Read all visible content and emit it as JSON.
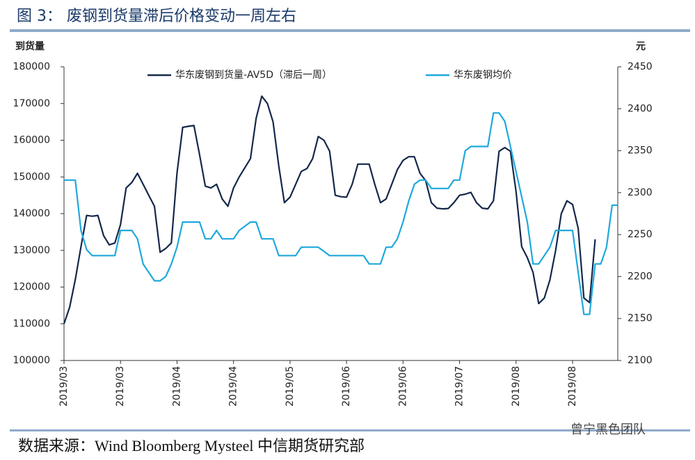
{
  "chart_data": {
    "type": "line",
    "title": "图 3：      废钢到货量滞后价格变动一周左右",
    "y_axis_label": "到货量",
    "y2_axis_label": "元",
    "source": "数据来源：Wind Bloomberg Mysteel 中信期货研究部",
    "watermark": "曾宁黑色团队",
    "categories": [
      "2019/03",
      null,
      null,
      null,
      null,
      null,
      null,
      null,
      null,
      null,
      "2019/03",
      null,
      null,
      null,
      null,
      null,
      null,
      null,
      null,
      null,
      "2019/04",
      null,
      null,
      null,
      null,
      null,
      null,
      null,
      null,
      null,
      "2019/04",
      null,
      null,
      null,
      null,
      null,
      null,
      null,
      null,
      null,
      "2019/05",
      null,
      null,
      null,
      null,
      null,
      null,
      null,
      null,
      null,
      "2019/06",
      null,
      null,
      null,
      null,
      null,
      null,
      null,
      null,
      null,
      "2019/06",
      null,
      null,
      null,
      null,
      null,
      null,
      null,
      null,
      null,
      "2019/07",
      null,
      null,
      null,
      null,
      null,
      null,
      null,
      null,
      null,
      "2019/08",
      null,
      null,
      null,
      null,
      null,
      null,
      null,
      null,
      null,
      "2019/08",
      null,
      null,
      null,
      null,
      null,
      null,
      null,
      null
    ],
    "series": [
      {
        "name": "华东废钢到货量-AV5D（滞后一周）",
        "color": "#14284b",
        "axis": "y",
        "values": [
          110000,
          114500,
          122000,
          131000,
          139500,
          139300,
          139500,
          134000,
          131500,
          132000,
          137000,
          147000,
          148500,
          151000,
          148000,
          145000,
          142000,
          129500,
          130500,
          132000,
          151000,
          163500,
          163800,
          164000,
          156000,
          147500,
          147000,
          148000,
          144000,
          142000,
          147000,
          150000,
          152500,
          155000,
          166000,
          172000,
          170000,
          165000,
          153000,
          143000,
          144500,
          148000,
          151500,
          152300,
          155000,
          161000,
          160000,
          157000,
          145000,
          144600,
          144500,
          148000,
          153500,
          153500,
          153500,
          148000,
          143000,
          144000,
          148000,
          152000,
          154500,
          155500,
          155500,
          151000,
          149000,
          143000,
          141500,
          141300,
          141400,
          143000,
          145000,
          145300,
          145800,
          143000,
          141500,
          141300,
          143500,
          157000,
          158000,
          157000,
          146000,
          131000,
          128000,
          124000,
          115500,
          117000,
          122000,
          130000,
          140000,
          143500,
          142500,
          136000,
          117000,
          115800,
          133000,
          null,
          null,
          null,
          null
        ]
      },
      {
        "name": "华东废钢均价",
        "color": "#1fa8dc",
        "axis": "y2",
        "values": [
          2315,
          2315,
          2315,
          2255,
          2232,
          2225,
          2225,
          2225,
          2225,
          2225,
          2255,
          2255,
          2255,
          2245,
          2215,
          2205,
          2195,
          2195,
          2200,
          2215,
          2235,
          2265,
          2265,
          2265,
          2265,
          2245,
          2245,
          2255,
          2245,
          2245,
          2245,
          2255,
          2260,
          2265,
          2265,
          2245,
          2245,
          2245,
          2225,
          2225,
          2225,
          2225,
          2235,
          2235,
          2235,
          2235,
          2230,
          2225,
          2225,
          2225,
          2225,
          2225,
          2225,
          2225,
          2215,
          2215,
          2215,
          2235,
          2235,
          2245,
          2265,
          2290,
          2310,
          2315,
          2315,
          2305,
          2305,
          2305,
          2305,
          2315,
          2315,
          2350,
          2355,
          2355,
          2355,
          2355,
          2395,
          2395,
          2385,
          2355,
          2325,
          2295,
          2265,
          2215,
          2215,
          2225,
          2235,
          2255,
          2255,
          2255,
          2255,
          2205,
          2155,
          2155,
          2215,
          2215,
          2235,
          2285,
          2285
        ]
      }
    ],
    "ylim": [
      100000,
      180000
    ],
    "yticks": [
      100000,
      110000,
      120000,
      130000,
      140000,
      150000,
      160000,
      170000,
      180000
    ],
    "y2lim": [
      2100,
      2450
    ],
    "y2ticks": [
      2100,
      2150,
      2200,
      2250,
      2300,
      2350,
      2400,
      2450
    ],
    "grid": false,
    "legend": "top"
  }
}
